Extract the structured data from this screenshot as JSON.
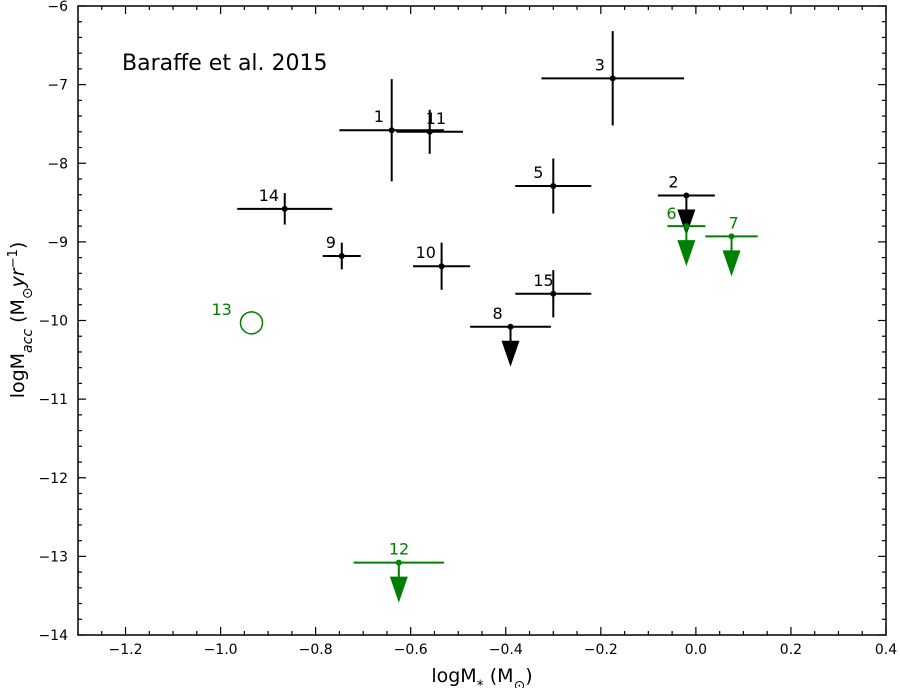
{
  "chart_data": {
    "type": "scatter",
    "annotation": "Baraffe et al. 2015",
    "xlabel": "logM",
    "xlabel_sub": "*",
    "xlabel_unit_open": " (M",
    "xlabel_unit_sub": "⊙",
    "xlabel_unit_close": ")",
    "ylabel": "logM",
    "ylabel_sub": "acc",
    "ylabel_unit": " (M",
    "ylabel_unit_sub": "⊙",
    "ylabel_unit_yr": "yr",
    "ylabel_unit_sup": "−1",
    "ylabel_unit_close": ")",
    "xlim": [
      -1.3,
      0.4
    ],
    "ylim": [
      -14,
      -6
    ],
    "xticks": [
      -1.2,
      -1.0,
      -0.8,
      -0.6,
      -0.4,
      -0.2,
      0.0,
      0.2,
      0.4
    ],
    "xtick_labels": [
      "−1.2",
      "−1.0",
      "−0.8",
      "−0.6",
      "−0.4",
      "−0.2",
      "0.0",
      "0.2",
      "0.4"
    ],
    "yticks": [
      -14,
      -13,
      -12,
      -11,
      -10,
      -9,
      -8,
      -7,
      -6
    ],
    "ytick_labels": [
      "−14",
      "−13",
      "−12",
      "−11",
      "−10",
      "−9",
      "−8",
      "−7",
      "−6"
    ],
    "colors": {
      "black": "#000000",
      "green": "#008000"
    },
    "points": [
      {
        "label": "1",
        "x": -0.64,
        "y": -7.58,
        "xerr": 0.11,
        "yerr": 0.65,
        "type": "errorbar",
        "color": "black"
      },
      {
        "label": "2",
        "x": -0.02,
        "y": -8.41,
        "xerr": 0.06,
        "yerr": 0,
        "type": "upperlimit",
        "color": "black"
      },
      {
        "label": "3",
        "x": -0.175,
        "y": -6.92,
        "xerr": 0.15,
        "yerr": 0.6,
        "type": "errorbar",
        "color": "black"
      },
      {
        "label": "5",
        "x": -0.3,
        "y": -8.29,
        "xerr": 0.08,
        "yerr": 0.35,
        "type": "errorbar",
        "color": "black"
      },
      {
        "label": "6",
        "x": -0.02,
        "y": -8.8,
        "xerr": 0.04,
        "yerr": 0,
        "type": "upperlimit",
        "color": "green"
      },
      {
        "label": "7",
        "x": 0.075,
        "y": -8.93,
        "xerr": 0.055,
        "yerr": 0,
        "type": "upperlimit",
        "color": "green"
      },
      {
        "label": "8",
        "x": -0.39,
        "y": -10.08,
        "xerr": 0.085,
        "yerr": 0,
        "type": "upperlimit",
        "color": "black"
      },
      {
        "label": "9",
        "x": -0.745,
        "y": -9.18,
        "xerr": 0.04,
        "yerr": 0.17,
        "type": "errorbar",
        "color": "black"
      },
      {
        "label": "10",
        "x": -0.535,
        "y": -9.31,
        "xerr": 0.06,
        "yerr": 0.3,
        "type": "errorbar",
        "color": "black"
      },
      {
        "label": "11",
        "x": -0.56,
        "y": -7.6,
        "xerr": 0.07,
        "yerr": 0.28,
        "type": "errorbar",
        "color": "black"
      },
      {
        "label": "12",
        "x": -0.625,
        "y": -13.08,
        "xerr": 0.095,
        "yerr": 0,
        "type": "upperlimit",
        "color": "green"
      },
      {
        "label": "13",
        "x": -0.935,
        "y": -10.03,
        "xerr": 0,
        "yerr": 0,
        "type": "open",
        "color": "green"
      },
      {
        "label": "14",
        "x": -0.865,
        "y": -8.58,
        "xerr": 0.1,
        "yerr": 0.2,
        "type": "errorbar",
        "color": "black"
      },
      {
        "label": "15",
        "x": -0.3,
        "y": -9.66,
        "xerr": 0.08,
        "yerr": 0.3,
        "type": "errorbar",
        "color": "black"
      }
    ]
  }
}
